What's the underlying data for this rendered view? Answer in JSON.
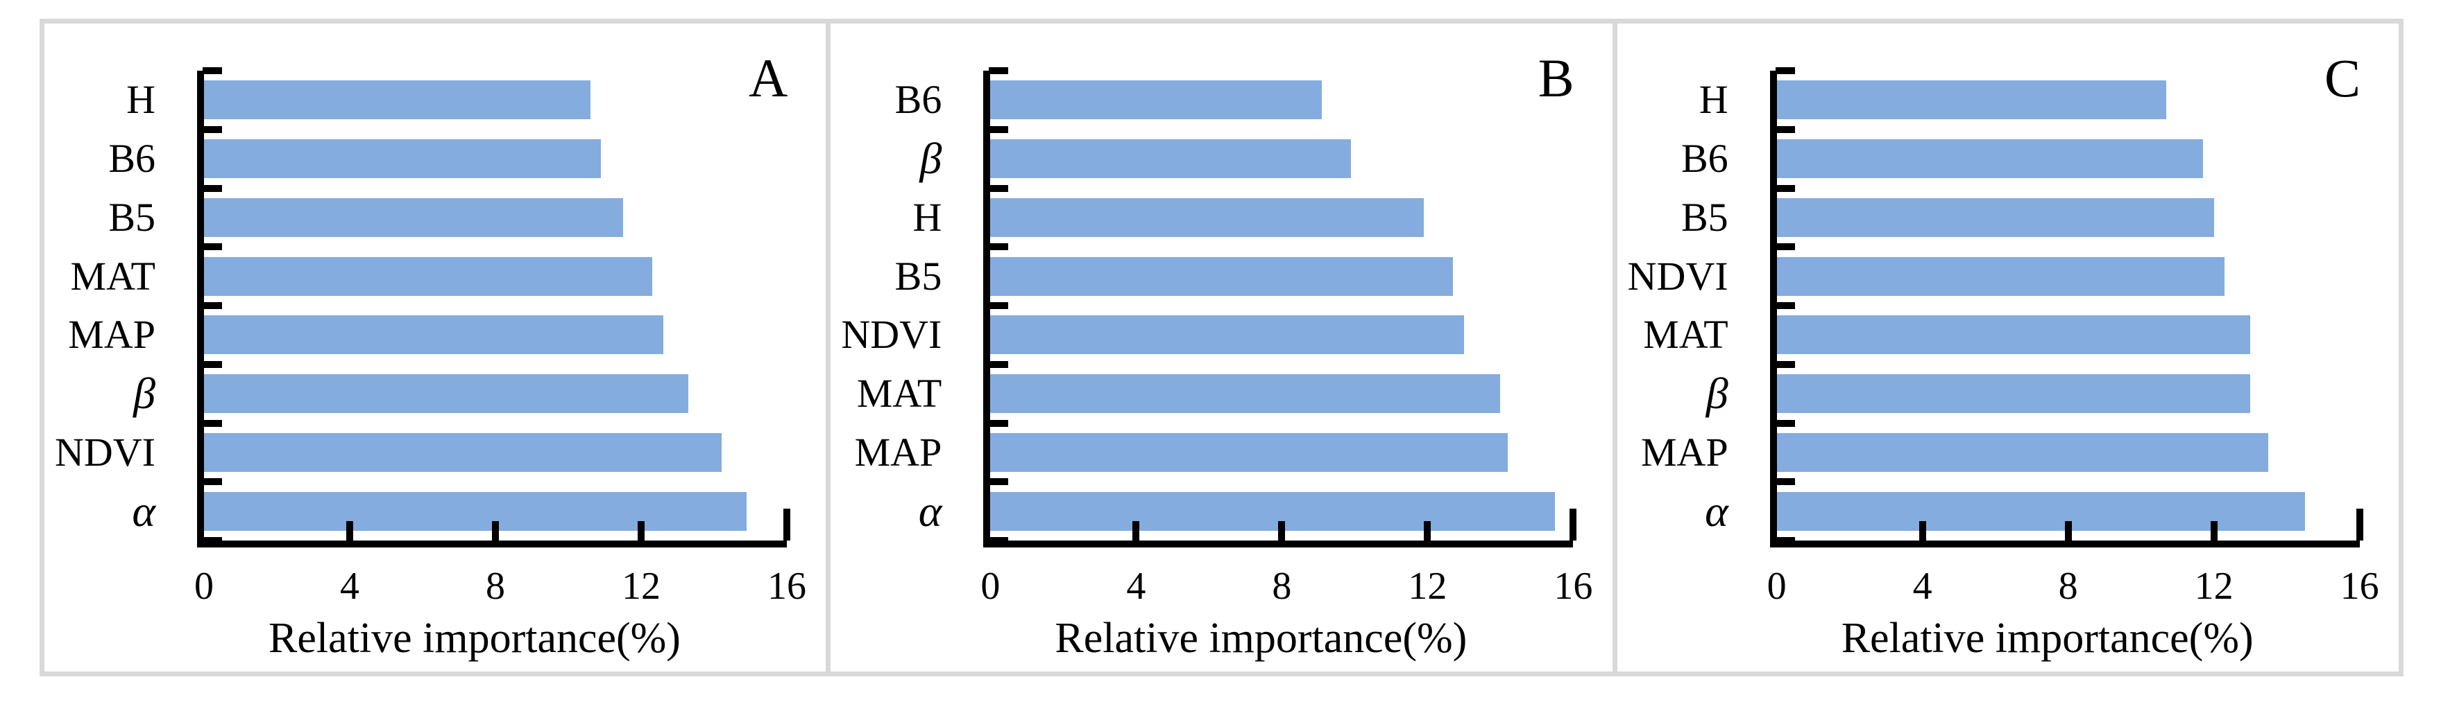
{
  "figure": {
    "frame_color": "#d9d9d9",
    "bar_color": "#84acde",
    "axis_color": "#000000",
    "background_color": "#ffffff"
  },
  "chart_data": [
    {
      "type": "bar",
      "orientation": "horizontal",
      "panel_label": "A",
      "categories": [
        "H",
        "B6",
        "B5",
        "MAT",
        "MAP",
        "β",
        "NDVI",
        "α"
      ],
      "values": [
        10.6,
        10.9,
        11.5,
        12.3,
        12.6,
        13.3,
        14.2,
        14.9
      ],
      "xlabel": "Relative importance(%)",
      "ylabel": "",
      "xlim": [
        0,
        16
      ],
      "xticks": [
        0,
        4,
        8,
        12,
        16
      ],
      "grid": false,
      "legend": "none"
    },
    {
      "type": "bar",
      "orientation": "horizontal",
      "panel_label": "B",
      "categories": [
        "B6",
        "β",
        "H",
        "B5",
        "NDVI",
        "MAT",
        "MAP",
        "α"
      ],
      "values": [
        9.1,
        9.9,
        11.9,
        12.7,
        13.0,
        14.0,
        14.2,
        15.5
      ],
      "xlabel": "Relative importance(%)",
      "ylabel": "",
      "xlim": [
        0,
        16
      ],
      "xticks": [
        0,
        4,
        8,
        12,
        16
      ],
      "grid": false,
      "legend": "none"
    },
    {
      "type": "bar",
      "orientation": "horizontal",
      "panel_label": "C",
      "categories": [
        "H",
        "B6",
        "B5",
        "NDVI",
        "MAT",
        "β",
        "MAP",
        "α"
      ],
      "values": [
        10.7,
        11.7,
        12.0,
        12.3,
        13.0,
        13.0,
        13.5,
        14.5
      ],
      "xlabel": "Relative importance(%)",
      "ylabel": "",
      "xlim": [
        0,
        16
      ],
      "xticks": [
        0,
        4,
        8,
        12,
        16
      ],
      "grid": false,
      "legend": "none"
    }
  ]
}
